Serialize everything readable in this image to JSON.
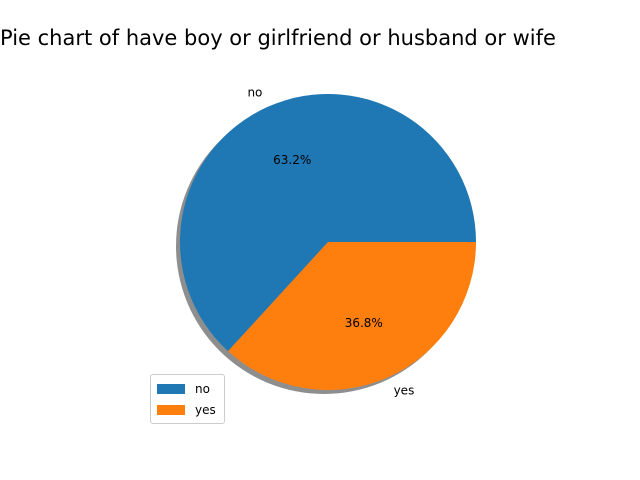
{
  "chart_data": {
    "type": "pie",
    "title": "Pie chart of have boy or girlfriend or husband or wife",
    "categories": [
      "no",
      "yes"
    ],
    "values": [
      63.2,
      36.8
    ],
    "percent_labels": [
      "63.2%",
      "36.8%"
    ],
    "colors": [
      "#1f77b4",
      "#ff7f0e"
    ],
    "shadow": true,
    "legend": {
      "placement": "lower-left",
      "entries": [
        "no",
        "yes"
      ]
    }
  }
}
